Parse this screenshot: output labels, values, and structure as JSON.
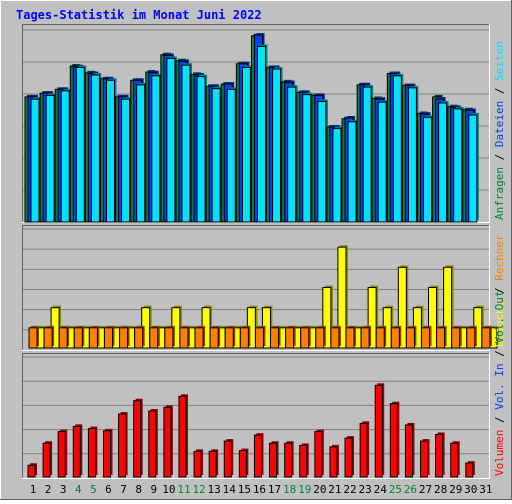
{
  "title": "Tages-Statistik im Monat Juni 2022",
  "colors": {
    "background": "#c0c0c0",
    "title": "#0000ff",
    "hits": "#008040",
    "files": "#0040ff",
    "pages": "#00e0ff",
    "visits": "#ffff00",
    "sites": "#ff8000",
    "kbytes": "#ff0000",
    "weekend": "#008040",
    "grid": "#808080"
  },
  "legend_top": [
    {
      "text": "Anfragen",
      "key": "hits"
    },
    {
      "text": " / ",
      "key": "text"
    },
    {
      "text": "Dateien",
      "key": "files"
    },
    {
      "text": " / ",
      "key": "text"
    },
    {
      "text": "Seiten",
      "key": "pages"
    }
  ],
  "legend_mid": [
    {
      "text": "Besuche",
      "key": "visits"
    },
    {
      "text": " / ",
      "key": "text"
    },
    {
      "text": "Rechner",
      "key": "sites"
    }
  ],
  "legend_bot": [
    {
      "text": "Volumen",
      "key": "kbytes"
    },
    {
      "text": " / ",
      "key": "text"
    },
    {
      "text": "Vol. In",
      "key": "files"
    },
    {
      "text": " / ",
      "key": "text"
    },
    {
      "text": "Vol. Out",
      "key": "hits"
    }
  ],
  "chart_data": [
    {
      "type": "bar",
      "panel": "top",
      "ymax_label": "25478",
      "ylim": [
        0,
        25478
      ],
      "x": [
        1,
        2,
        3,
        4,
        5,
        6,
        7,
        8,
        9,
        10,
        11,
        12,
        13,
        14,
        15,
        16,
        17,
        18,
        19,
        20,
        21,
        22,
        23,
        24,
        25,
        26,
        27,
        28,
        29,
        30,
        31
      ],
      "series": [
        {
          "name": "Anfragen",
          "values": [
            16600,
            17100,
            17600,
            20700,
            19800,
            19000,
            16600,
            18800,
            19900,
            22200,
            21400,
            19600,
            18000,
            18300,
            21000,
            24700,
            20500,
            18600,
            17200,
            16800,
            12600,
            13700,
            18200,
            16400,
            19700,
            18100,
            14400,
            16600,
            15300,
            14900,
            0
          ]
        },
        {
          "name": "Dateien",
          "values": [
            16600,
            17100,
            17600,
            20600,
            19700,
            19000,
            16600,
            18800,
            19800,
            22100,
            21300,
            19500,
            18000,
            18300,
            21000,
            24800,
            20500,
            18500,
            17200,
            16800,
            12600,
            13800,
            18200,
            16300,
            19700,
            18100,
            14300,
            16300,
            15200,
            14800,
            0
          ]
        },
        {
          "name": "Seiten",
          "values": [
            16300,
            16800,
            17400,
            20500,
            19500,
            18800,
            16300,
            18200,
            19400,
            21700,
            20800,
            19300,
            17700,
            17600,
            20500,
            23300,
            20300,
            17900,
            16900,
            16000,
            12400,
            13300,
            17900,
            15900,
            19400,
            17800,
            13900,
            15800,
            15000,
            14200,
            0
          ]
        }
      ]
    },
    {
      "type": "bar",
      "panel": "middle",
      "ymax_label": "6",
      "ylim": [
        0,
        6
      ],
      "x": [
        1,
        2,
        3,
        4,
        5,
        6,
        7,
        8,
        9,
        10,
        11,
        12,
        13,
        14,
        15,
        16,
        17,
        18,
        19,
        20,
        21,
        22,
        23,
        24,
        25,
        26,
        27,
        28,
        29,
        30,
        31
      ],
      "series": [
        {
          "name": "Besuche",
          "values": [
            1,
            2,
            1,
            1,
            1,
            1,
            1,
            2,
            1,
            2,
            1,
            2,
            1,
            1,
            2,
            2,
            1,
            1,
            1,
            3,
            5,
            1,
            3,
            2,
            4,
            2,
            3,
            4,
            1,
            2,
            1
          ]
        },
        {
          "name": "Rechner",
          "values": [
            1,
            1,
            1,
            1,
            1,
            1,
            1,
            1,
            1,
            1,
            1,
            1,
            1,
            1,
            1,
            1,
            1,
            1,
            1,
            1,
            1,
            1,
            1,
            1,
            1,
            1,
            1,
            1,
            1,
            1,
            1
          ]
        }
      ]
    },
    {
      "type": "bar",
      "panel": "bottom",
      "ymax_label": "155.61 MB",
      "ylim": [
        0,
        155.61
      ],
      "x": [
        1,
        2,
        3,
        4,
        5,
        6,
        7,
        8,
        9,
        10,
        11,
        12,
        13,
        14,
        15,
        16,
        17,
        18,
        19,
        20,
        21,
        22,
        23,
        24,
        25,
        26,
        27,
        28,
        29,
        30,
        31
      ],
      "series": [
        {
          "name": "Volumen",
          "values": [
            15.1,
            43.4,
            58.5,
            65.1,
            62.3,
            59.4,
            81.1,
            98.1,
            84.9,
            89.6,
            103.8,
            33.0,
            33.0,
            46.2,
            34.0,
            53.8,
            43.4,
            43.4,
            40.6,
            58.5,
            38.7,
            50.0,
            68.9,
            117.9,
            94.3,
            67.0,
            46.2,
            54.7,
            43.4,
            17.9,
            0
          ]
        }
      ]
    }
  ]
}
